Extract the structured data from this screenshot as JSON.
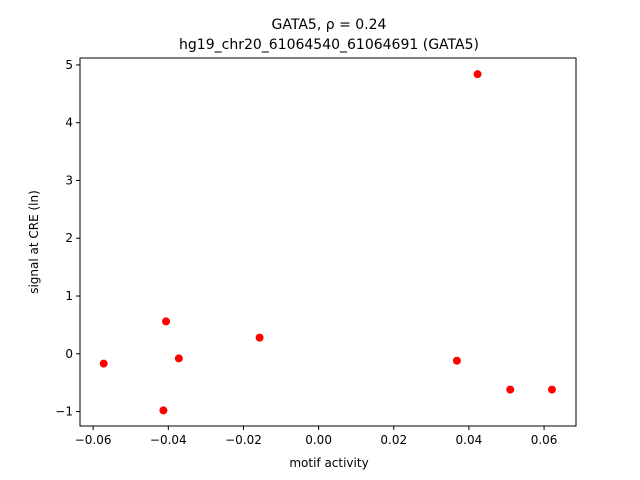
{
  "chart_data": {
    "type": "scatter",
    "title_line1": "GATA5, ρ = 0.24",
    "title_line2": "hg19_chr20_61064540_61064691 (GATA5)",
    "xlabel": "motif activity",
    "ylabel": "signal at CRE (ln)",
    "xlim": [
      -0.0635,
      0.0685
    ],
    "ylim": [
      -1.25,
      5.12
    ],
    "xticks": [
      -0.06,
      -0.04,
      -0.02,
      0.0,
      0.02,
      0.04,
      0.06
    ],
    "xtick_labels": [
      "−0.06",
      "−0.04",
      "−0.02",
      "0.00",
      "0.02",
      "0.04",
      "0.06"
    ],
    "yticks": [
      -1,
      0,
      1,
      2,
      3,
      4,
      5
    ],
    "ytick_labels": [
      "−1",
      "0",
      "1",
      "2",
      "3",
      "4",
      "5"
    ],
    "grid": false,
    "marker_color": "#ff0000",
    "points": [
      {
        "x": -0.0572,
        "y": -0.17
      },
      {
        "x": -0.0406,
        "y": 0.56
      },
      {
        "x": -0.0413,
        "y": -0.98
      },
      {
        "x": -0.0372,
        "y": -0.08
      },
      {
        "x": -0.0157,
        "y": 0.28
      },
      {
        "x": 0.0368,
        "y": -0.12
      },
      {
        "x": 0.0423,
        "y": 4.84
      },
      {
        "x": 0.051,
        "y": -0.62
      },
      {
        "x": 0.0621,
        "y": -0.62
      }
    ]
  }
}
